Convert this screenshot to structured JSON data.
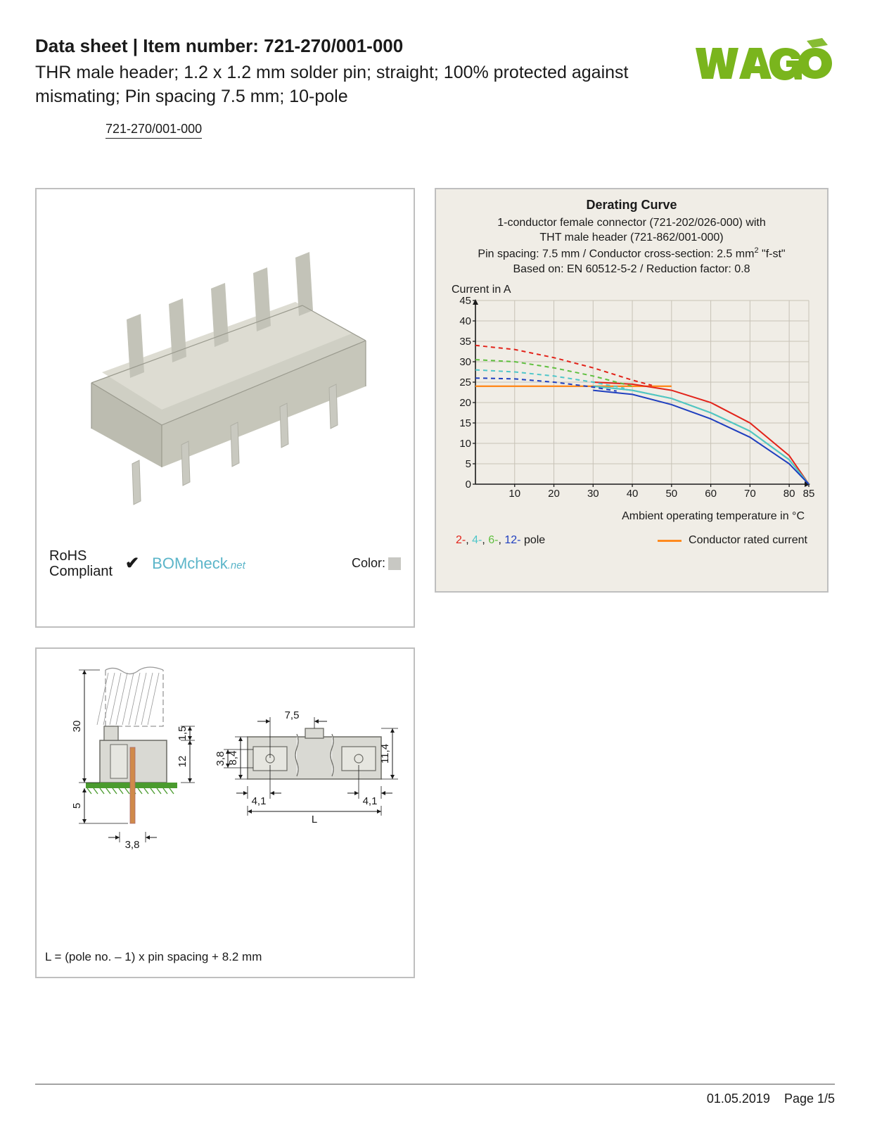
{
  "header": {
    "title_prefix": "Data sheet",
    "title_sep": "  |  ",
    "title_label": "Item number:",
    "item_number": "721-270/001-000",
    "description": "THR male header; 1.2 x 1.2 mm solder pin; straight; 100% protected against mismating; Pin spacing 7.5 mm; 10-pole",
    "link_text": "721-270/001-000",
    "logo_text": "WAGO",
    "logo_color": "#7ab51d"
  },
  "product_panel": {
    "rohs_line1": "RoHS",
    "rohs_line2": "Compliant",
    "check": "✔",
    "bomcheck_main": "BOMcheck",
    "bomcheck_suffix": ".net",
    "color_label": "Color:",
    "swatch_color": "#c8c8c3",
    "connector_body_color": "#d4d4ca",
    "connector_shadow_color": "#b8b8ae",
    "connector_pin_color": "#c9c9c0"
  },
  "chart": {
    "title": "Derating Curve",
    "sub1": "1-conductor female connector (721-202/026-000) with",
    "sub2": "THT male header (721-862/001-000)",
    "sub3_a": "Pin spacing: 7.5 mm / Conductor cross-section: 2.5 mm",
    "sub3_sup": "2",
    "sub3_b": " \"f-st\"",
    "sub4": "Based on: EN 60512-5-2 / Reduction factor: 0.8",
    "ylabel": "Current in A",
    "xlabel": "Ambient operating temperature in °C",
    "yticks": [
      0,
      5,
      10,
      15,
      20,
      25,
      30,
      35,
      40,
      45
    ],
    "xticks": [
      10,
      20,
      30,
      40,
      50,
      60,
      70,
      80,
      85
    ],
    "ylim": [
      0,
      45
    ],
    "xlim": [
      0,
      85
    ],
    "grid_color": "#c7c2b6",
    "axis_color": "#1a1a1a",
    "plot_bg": "#f0ede6",
    "series": {
      "red": {
        "color": "#e2231a",
        "solid": [
          [
            30,
            25
          ],
          [
            40,
            24.5
          ],
          [
            50,
            23
          ],
          [
            60,
            20
          ],
          [
            70,
            15
          ],
          [
            80,
            7
          ],
          [
            85,
            0
          ]
        ],
        "dashed": [
          [
            0,
            34
          ],
          [
            10,
            33
          ],
          [
            20,
            31
          ],
          [
            30,
            28.5
          ],
          [
            40,
            25.5
          ],
          [
            45,
            24.2
          ]
        ]
      },
      "green": {
        "color": "#5fbf3f",
        "solid": [
          [
            30,
            24
          ],
          [
            40,
            23
          ],
          [
            50,
            21
          ],
          [
            60,
            17.5
          ],
          [
            70,
            13
          ],
          [
            80,
            6
          ],
          [
            85,
            0
          ]
        ],
        "dashed": [
          [
            0,
            30.5
          ],
          [
            10,
            30
          ],
          [
            20,
            28.5
          ],
          [
            30,
            26.5
          ],
          [
            40,
            24
          ]
        ]
      },
      "cyan": {
        "color": "#4fc6c9",
        "solid": [
          [
            30,
            24
          ],
          [
            40,
            23
          ],
          [
            50,
            21
          ],
          [
            60,
            17.5
          ],
          [
            70,
            13
          ],
          [
            80,
            6
          ],
          [
            85,
            0
          ]
        ],
        "dashed": [
          [
            0,
            28
          ],
          [
            10,
            27.5
          ],
          [
            20,
            26.5
          ],
          [
            30,
            25
          ],
          [
            38,
            23.5
          ]
        ]
      },
      "blue": {
        "color": "#1f3fbf",
        "solid": [
          [
            30,
            23
          ],
          [
            40,
            22
          ],
          [
            50,
            19.5
          ],
          [
            60,
            16
          ],
          [
            70,
            11.5
          ],
          [
            80,
            5
          ],
          [
            85,
            0
          ]
        ],
        "dashed": [
          [
            0,
            26
          ],
          [
            10,
            25.8
          ],
          [
            20,
            25
          ],
          [
            30,
            23.8
          ],
          [
            36,
            22.8
          ]
        ]
      },
      "orange": {
        "color": "#ff8a1f",
        "points": [
          [
            0,
            24
          ],
          [
            50,
            24
          ]
        ]
      }
    },
    "legend": {
      "p2": "2-",
      "p4": "4-",
      "p6": "6-",
      "p12": "12-",
      "pole_word": " pole",
      "cond_rated": "Conductor rated current",
      "c2": "#e2231a",
      "c4": "#4fc6c9",
      "c6": "#5fbf3f",
      "c12": "#1f3fbf",
      "swatch_color": "#ff8a1f"
    },
    "line_width_solid": 2.0,
    "line_width_dashed": 2.0,
    "dash_pattern": "6,5",
    "ytick_fontsize": 15,
    "xtick_fontsize": 15
  },
  "drawing": {
    "note": "L = (pole no. – 1) x pin spacing + 8.2 mm",
    "dims": {
      "h30": "30",
      "h1_5": "1,5",
      "h12": "12",
      "h5": "5",
      "w3_8": "3,8",
      "w7_5": "7,5",
      "h8_4": "8,4",
      "h3_8": "3,8",
      "w4_1a": "4,1",
      "w4_1b": "4,1",
      "L": "L",
      "h11_4": "11,4"
    },
    "dim_color": "#1a1a1a",
    "body_fill": "#d9d9d3",
    "body_stroke": "#6b6b65",
    "pcb_color": "#4a9b2e",
    "pin_color": "#d08a4a",
    "hatch_color": "#999"
  },
  "footer": {
    "date": "01.05.2019",
    "page": "Page 1/5"
  }
}
